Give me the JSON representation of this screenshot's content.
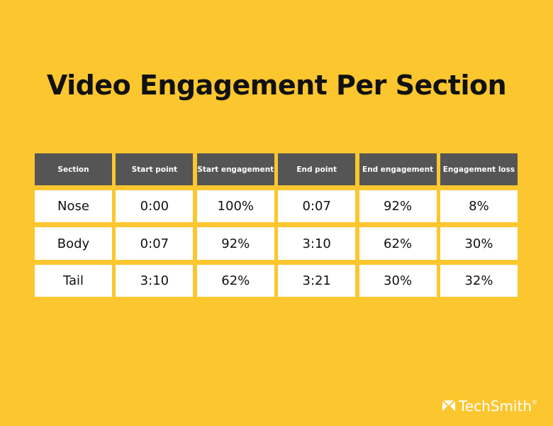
{
  "header": {
    "title": "Video Engagement Per Section"
  },
  "table": {
    "columns": [
      "Section",
      "Start point",
      "Start engagement",
      "End point",
      "End engagement",
      "Engagement loss"
    ],
    "rows": [
      [
        "Nose",
        "0:00",
        "100%",
        "0:07",
        "92%",
        "8%"
      ],
      [
        "Body",
        "0:07",
        "92%",
        "3:10",
        "62%",
        "30%"
      ],
      [
        "Tail",
        "3:10",
        "62%",
        "3:21",
        "30%",
        "32%"
      ]
    ]
  },
  "footer": {
    "logo": "TechSmith",
    "logo_mark": "®"
  }
}
